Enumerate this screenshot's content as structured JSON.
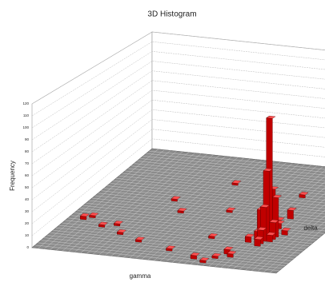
{
  "chart_data": {
    "type": "histogram3d",
    "title": "3D Histogram",
    "x_label": "gamma",
    "y_label": "delta",
    "z_label": "Frequency",
    "xlim": [
      0,
      40
    ],
    "ylim": [
      0,
      40
    ],
    "zlim": [
      0,
      120
    ],
    "zticks": [
      0,
      10,
      20,
      30,
      40,
      50,
      60,
      70,
      80,
      90,
      100,
      110,
      120
    ],
    "color": "#c00000",
    "grid": true,
    "x": [
      32,
      32,
      31,
      33,
      32,
      31,
      32,
      33,
      31,
      32,
      32,
      30,
      33,
      34,
      32,
      31,
      32,
      2,
      3,
      6,
      8,
      10,
      14,
      20,
      25,
      27,
      28,
      22,
      26,
      18,
      30,
      35,
      12,
      15,
      24,
      29,
      30
    ],
    "y": [
      13,
      12,
      12,
      13,
      14,
      13,
      11,
      12,
      11,
      10,
      9,
      10,
      11,
      14,
      16,
      18,
      20,
      12,
      13,
      10,
      11,
      8,
      6,
      4,
      2,
      1,
      3,
      20,
      25,
      30,
      28,
      30,
      22,
      18,
      10,
      5,
      4
    ],
    "values": [
      105,
      60,
      25,
      35,
      40,
      20,
      30,
      15,
      8,
      12,
      6,
      5,
      6,
      4,
      5,
      3,
      8,
      3,
      2,
      2,
      2,
      2,
      2,
      2,
      3,
      2,
      2,
      2,
      2,
      2,
      3,
      2,
      2,
      2,
      2,
      4,
      3
    ]
  }
}
